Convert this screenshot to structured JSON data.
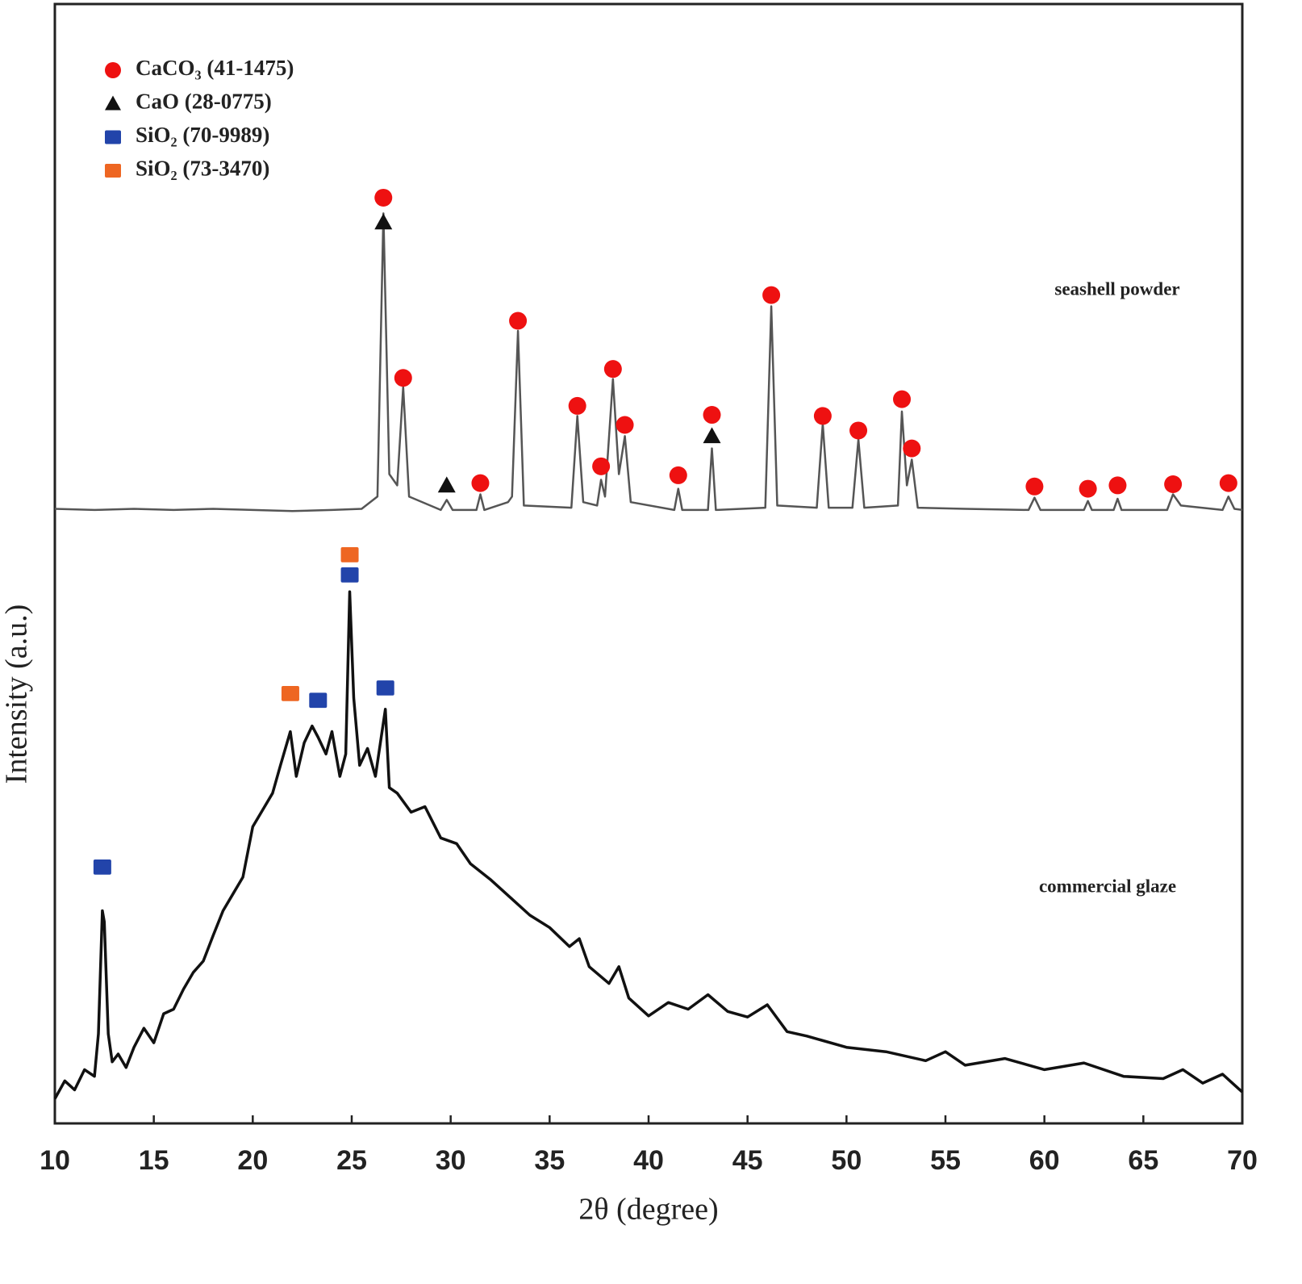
{
  "chart_data": {
    "type": "line",
    "xlabel": "2θ (degree)",
    "ylabel": "Intensity (a.u.)",
    "xlim": [
      10,
      70
    ],
    "xticks": [
      10,
      15,
      20,
      25,
      30,
      35,
      40,
      45,
      50,
      55,
      60,
      65,
      70
    ],
    "ylim": [
      0,
      100
    ],
    "series": [
      {
        "name": "seashell powder",
        "type": "line",
        "color": "#555555",
        "x": [
          10,
          12,
          14,
          16,
          18,
          20,
          22,
          24,
          25.5,
          26.3,
          26.6,
          26.9,
          27.3,
          27.6,
          27.9,
          29.5,
          29.8,
          30.1,
          31.3,
          31.5,
          31.7,
          32.9,
          33.1,
          33.4,
          33.7,
          36.1,
          36.4,
          36.7,
          37.4,
          37.6,
          37.8,
          38.2,
          38.5,
          38.8,
          39.1,
          41.3,
          41.5,
          41.7,
          43.0,
          43.2,
          43.4,
          45.9,
          46.2,
          46.5,
          48.5,
          48.8,
          49.1,
          50.3,
          50.6,
          50.9,
          52.6,
          52.8,
          53.05,
          53.3,
          53.6,
          56,
          59.2,
          59.5,
          59.8,
          62,
          62.2,
          62.4,
          63.5,
          63.7,
          63.9,
          66.2,
          66.5,
          66.9,
          69,
          69.3,
          69.6,
          70
        ],
        "values": [
          54.9,
          54.8,
          54.9,
          54.8,
          54.9,
          54.8,
          54.7,
          54.8,
          54.9,
          56,
          81.3,
          58,
          57,
          65.8,
          56,
          54.8,
          55.7,
          54.8,
          54.8,
          56.2,
          54.8,
          55.5,
          56,
          70.8,
          55.2,
          55,
          63.2,
          55.5,
          55.2,
          57.5,
          56,
          66.5,
          58,
          61.4,
          55.5,
          54.8,
          56.7,
          54.8,
          54.8,
          60.3,
          54.8,
          55,
          73,
          55.2,
          55,
          62.5,
          55,
          55,
          61.1,
          55,
          55.2,
          63.6,
          57,
          59.3,
          55,
          54.9,
          54.8,
          55.9,
          54.8,
          54.8,
          55.6,
          54.8,
          54.8,
          55.8,
          54.8,
          54.8,
          56.2,
          55.2,
          54.8,
          56,
          54.9,
          54.8
        ]
      },
      {
        "name": "commercial glaze",
        "type": "line",
        "color": "#111111",
        "x": [
          10,
          10.5,
          11,
          11.5,
          12,
          12.2,
          12.4,
          12.5,
          12.7,
          12.9,
          13.2,
          13.6,
          14,
          14.5,
          15,
          15.5,
          16,
          16.5,
          17,
          17.5,
          18,
          18.5,
          19,
          19.5,
          20,
          20.5,
          21,
          21.4,
          21.9,
          22.2,
          22.6,
          23,
          23.3,
          23.7,
          24,
          24.4,
          24.7,
          24.9,
          25.1,
          25.4,
          25.8,
          26.2,
          26.7,
          26.9,
          27.3,
          28,
          28.7,
          29.5,
          30.3,
          31,
          32,
          33,
          34,
          35,
          36,
          36.5,
          37,
          38,
          38.5,
          39,
          40,
          41,
          42,
          43,
          44,
          45,
          46,
          47,
          48,
          50,
          52,
          54,
          55,
          56,
          58,
          60,
          62,
          64,
          66,
          67,
          68,
          69,
          70
        ],
        "values": [
          2.2,
          3.8,
          3,
          4.8,
          4.2,
          8,
          19,
          18,
          8,
          5.5,
          6.2,
          5,
          6.8,
          8.5,
          7.2,
          9.8,
          10.2,
          12,
          13.5,
          14.5,
          16.8,
          19,
          20.5,
          22,
          26.5,
          28,
          29.5,
          32,
          35,
          31,
          34,
          35.5,
          34.5,
          33,
          35,
          31,
          33,
          47.5,
          38,
          32,
          33.5,
          31,
          37,
          30,
          29.5,
          27.8,
          28.3,
          25.5,
          25,
          23.2,
          21.8,
          20.2,
          18.6,
          17.5,
          15.8,
          16.5,
          14,
          12.5,
          14,
          11.2,
          9.6,
          10.8,
          10.2,
          11.5,
          10,
          9.5,
          10.6,
          8.2,
          7.8,
          6.8,
          6.4,
          5.6,
          6.4,
          5.2,
          5.8,
          4.8,
          5.4,
          4.2,
          4,
          4.8,
          3.6,
          4.4,
          2.8
        ]
      },
      {
        "name": "CaCO₃ (41-1475)",
        "type": "scatter",
        "marker": "circle",
        "color": "#ee1111",
        "x": [
          26.6,
          27.6,
          31.5,
          33.4,
          36.4,
          37.6,
          38.2,
          38.8,
          41.5,
          43.2,
          46.2,
          48.8,
          50.6,
          52.8,
          53.3,
          59.5,
          62.2,
          63.7,
          66.5,
          69.3
        ],
        "values": [
          82.7,
          66.6,
          57.2,
          71.7,
          64.1,
          58.7,
          67.4,
          62.4,
          57.9,
          63.3,
          74.0,
          63.2,
          61.9,
          64.7,
          60.3,
          56.9,
          56.7,
          57.0,
          57.1,
          57.2
        ]
      },
      {
        "name": "CaO (28-0775)",
        "type": "scatter",
        "marker": "triangle",
        "color": "#111111",
        "x": [
          26.6,
          29.8,
          43.2
        ],
        "values": [
          80.5,
          57.0,
          61.4
        ]
      },
      {
        "name": "SiO₂ (70-9989)",
        "type": "scatter",
        "marker": "square",
        "color": "#2244aa",
        "x": [
          12.4,
          23.3,
          24.9,
          26.7
        ],
        "values": [
          22.9,
          37.8,
          49.0,
          38.9
        ]
      },
      {
        "name": "SiO₂ (73-3470)",
        "type": "scatter",
        "marker": "square",
        "color": "#ee6622",
        "x": [
          21.9,
          24.9
        ],
        "values": [
          38.4,
          50.8
        ]
      }
    ]
  }
}
